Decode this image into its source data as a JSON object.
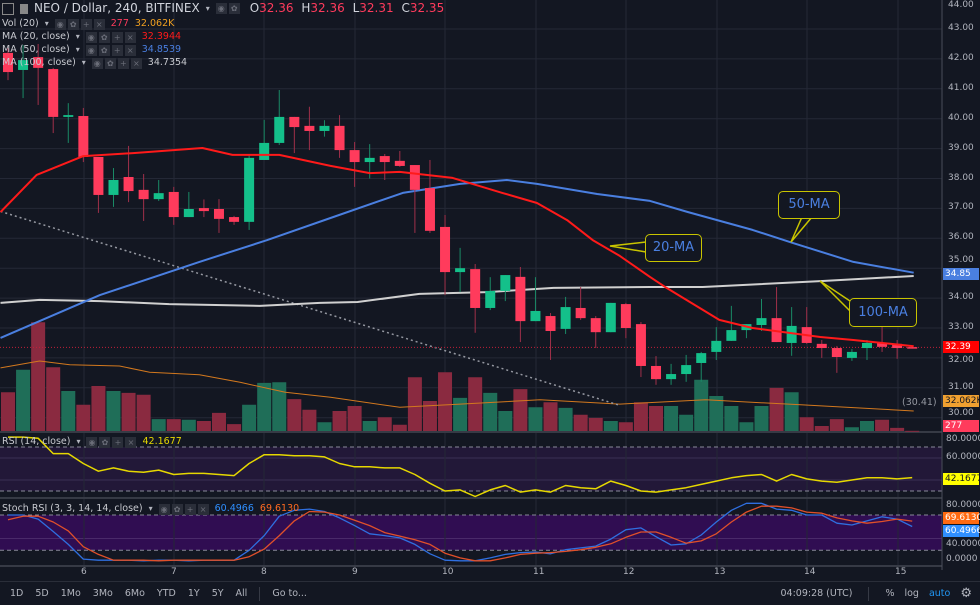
{
  "header": {
    "symbol_title": "NEO / Dollar, 240, BITFINEX",
    "ohlc": {
      "o_label": "O",
      "o": "32.36",
      "h_label": "H",
      "h": "32.36",
      "l_label": "L",
      "l": "32.31",
      "c_label": "C",
      "c": "32.35"
    }
  },
  "indicators": {
    "vol": {
      "label": "Vol (20)",
      "value": "277",
      "ma_value": "32.062K"
    },
    "ma20": {
      "label": "MA (20, close)",
      "value": "32.3944"
    },
    "ma50": {
      "label": "MA (50, close)",
      "value": "34.8539"
    },
    "ma100": {
      "label": "MA (100, close)",
      "value": "34.7354"
    },
    "rsi": {
      "label": "RSI (14, close)",
      "value": "42.1677"
    },
    "stoch": {
      "label": "Stoch RSI (3, 3, 14, 14, close)",
      "k_value": "60.4966",
      "d_value": "69.6130"
    }
  },
  "price_axis": [
    "44.00",
    "43.00",
    "42.00",
    "41.00",
    "40.00",
    "39.00",
    "38.00",
    "37.00",
    "36.00",
    "35.00",
    "34.00",
    "33.00",
    "32.00",
    "31.00",
    "30.00"
  ],
  "rsi_axis": [
    "80.0000",
    "60.0000"
  ],
  "stoch_axis": [
    "80.0000",
    "40.0000",
    "0.0000"
  ],
  "axis_tags": {
    "ma50": "34.85",
    "price": "32.39",
    "vol_ma": "32.062K",
    "vol": "277",
    "rsi": "42.1677",
    "stoch_d": "69.6130",
    "stoch_k": "60.4966",
    "trend_label": "(30.41)"
  },
  "day_labels": [
    "6",
    "7",
    "8",
    "9",
    "10",
    "11",
    "12",
    "13",
    "14",
    "15"
  ],
  "callouts": {
    "ma20": "20-MA",
    "ma50": "50-MA",
    "ma100": "100-MA"
  },
  "colors": {
    "up": "#14c08a",
    "down": "#ff3b5c",
    "vol_up": "#1f6e58",
    "vol_down": "#8a2a40",
    "ma20": "#ff1a1a",
    "ma50": "#4a7fe0",
    "ma100": "#d0d0d0",
    "vol_ma": "#d2781e",
    "rsi": "#e6d800",
    "stoch_k": "#2f6fe0",
    "stoch_d": "#e0502a",
    "callout": "#c8c400"
  },
  "toolbar": {
    "ranges": [
      "1D",
      "5D",
      "1Mo",
      "3Mo",
      "6Mo",
      "YTD",
      "1Y",
      "5Y",
      "All"
    ],
    "goto": "Go to...",
    "time": "04:09:28 (UTC)",
    "percent": "%",
    "log": "log",
    "auto": "auto"
  },
  "chart_data": {
    "type": "candlestick",
    "interval": "240",
    "x_ticks": [
      "6",
      "7",
      "8",
      "9",
      "10",
      "11",
      "12",
      "13",
      "14",
      "15"
    ],
    "ylim": [
      30,
      44
    ],
    "grid": true,
    "candles_ohlc": [
      [
        42.2,
        42.36,
        41.29,
        41.56
      ],
      [
        41.63,
        42.46,
        40.69,
        41.96
      ],
      [
        42.06,
        42.5,
        40.46,
        41.7
      ],
      [
        41.66,
        41.7,
        39.52,
        40.06
      ],
      [
        40.06,
        40.52,
        39.19,
        40.12
      ],
      [
        40.09,
        40.36,
        38.55,
        38.72
      ],
      [
        38.72,
        38.72,
        36.85,
        37.45
      ],
      [
        37.45,
        38.35,
        37.05,
        37.95
      ],
      [
        38.05,
        39.09,
        37.21,
        37.58
      ],
      [
        37.62,
        38.15,
        36.58,
        37.31
      ],
      [
        37.31,
        37.95,
        37.25,
        37.51
      ],
      [
        37.55,
        37.72,
        36.45,
        36.71
      ],
      [
        36.71,
        37.55,
        36.71,
        36.98
      ],
      [
        37.01,
        37.3,
        36.71,
        36.91
      ],
      [
        36.98,
        37.31,
        36.18,
        36.65
      ],
      [
        36.71,
        36.75,
        36.45,
        36.55
      ],
      [
        36.55,
        38.82,
        36.28,
        38.69
      ],
      [
        38.62,
        39.96,
        38.62,
        39.19
      ],
      [
        39.19,
        40.96,
        39.12,
        40.06
      ],
      [
        40.06,
        40.06,
        38.85,
        39.72
      ],
      [
        39.76,
        40.4,
        38.95,
        39.59
      ],
      [
        39.59,
        39.95,
        39.4,
        39.76
      ],
      [
        39.76,
        40.12,
        38.69,
        38.95
      ],
      [
        38.95,
        39.22,
        37.72,
        38.55
      ],
      [
        38.55,
        39.15,
        38.0,
        38.69
      ],
      [
        38.75,
        38.82,
        37.95,
        38.55
      ],
      [
        38.59,
        38.92,
        38.39,
        38.42
      ],
      [
        38.45,
        38.45,
        36.18,
        37.62
      ],
      [
        37.68,
        38.62,
        36.18,
        36.25
      ],
      [
        36.38,
        36.78,
        34.1,
        34.87
      ],
      [
        34.87,
        35.68,
        34.2,
        35.0
      ],
      [
        34.97,
        35.14,
        32.84,
        33.67
      ],
      [
        33.67,
        34.7,
        33.6,
        34.24
      ],
      [
        34.24,
        34.77,
        33.9,
        34.77
      ],
      [
        34.71,
        35.04,
        32.53,
        33.23
      ],
      [
        33.23,
        34.7,
        33.23,
        33.57
      ],
      [
        33.4,
        33.5,
        31.93,
        32.9
      ],
      [
        32.97,
        34.04,
        32.8,
        33.7
      ],
      [
        33.67,
        34.37,
        33.27,
        33.33
      ],
      [
        33.33,
        33.4,
        32.33,
        32.86
      ],
      [
        32.86,
        33.84,
        32.86,
        33.84
      ],
      [
        33.8,
        33.84,
        32.66,
        33.0
      ],
      [
        33.13,
        33.2,
        31.36,
        31.73
      ],
      [
        31.73,
        32.06,
        31.1,
        31.29
      ],
      [
        31.29,
        31.8,
        31.1,
        31.46
      ],
      [
        31.46,
        32.1,
        31.2,
        31.76
      ],
      [
        31.83,
        32.2,
        31.2,
        32.16
      ],
      [
        32.2,
        33.03,
        31.93,
        32.57
      ],
      [
        32.57,
        33.74,
        32.57,
        32.93
      ],
      [
        32.93,
        33.13,
        32.66,
        33.13
      ],
      [
        33.1,
        33.97,
        32.9,
        33.33
      ],
      [
        33.33,
        34.37,
        32.53,
        32.53
      ],
      [
        32.5,
        33.7,
        32.07,
        33.07
      ],
      [
        33.03,
        33.7,
        32.47,
        32.5
      ],
      [
        32.47,
        32.6,
        32.0,
        32.33
      ],
      [
        32.33,
        32.4,
        31.5,
        32.03
      ],
      [
        32.0,
        32.3,
        31.9,
        32.2
      ],
      [
        32.33,
        32.6,
        31.93,
        32.5
      ],
      [
        32.5,
        33.17,
        32.2,
        32.37
      ],
      [
        32.47,
        32.6,
        31.97,
        32.33
      ],
      [
        32.36,
        32.36,
        32.31,
        32.35
      ]
    ],
    "volume_k": [
      62,
      98,
      174,
      102,
      64,
      42,
      72,
      64,
      61,
      58,
      19,
      19,
      18,
      16,
      29,
      11,
      42,
      77,
      78,
      51,
      34,
      14,
      32,
      40,
      16,
      22,
      10,
      86,
      48,
      94,
      53,
      86,
      61,
      32,
      67,
      38,
      46,
      37,
      26,
      21,
      16,
      14,
      46,
      40,
      40,
      26,
      82,
      56,
      40,
      14,
      40,
      69,
      62,
      22,
      8,
      19,
      6,
      16,
      18,
      5,
      0.277
    ],
    "ma20": [
      [
        -0.5,
        36.88
      ],
      [
        1.9,
        38.12
      ],
      [
        5,
        38.75
      ],
      [
        8.3,
        38.85
      ],
      [
        12.9,
        39.02
      ],
      [
        14.9,
        38.79
      ],
      [
        18,
        38.79
      ],
      [
        21.4,
        38.42
      ],
      [
        24,
        38.18
      ],
      [
        26,
        38.22
      ],
      [
        29.5,
        38.02
      ],
      [
        32.8,
        37.52
      ],
      [
        35.1,
        37.18
      ],
      [
        37.1,
        36.61
      ],
      [
        38.8,
        35.94
      ],
      [
        40.6,
        35.41
      ],
      [
        42.6,
        34.71
      ],
      [
        43.7,
        34.34
      ],
      [
        47.2,
        33.27
      ],
      [
        49.4,
        33.0
      ],
      [
        53.9,
        32.7
      ],
      [
        56.1,
        32.6
      ],
      [
        60.1,
        32.39
      ]
    ],
    "ma50": [
      [
        -0.5,
        32.67
      ],
      [
        6.1,
        34.1
      ],
      [
        12.7,
        35.21
      ],
      [
        17.2,
        35.94
      ],
      [
        21.4,
        36.68
      ],
      [
        26.2,
        37.52
      ],
      [
        30,
        37.82
      ],
      [
        33.1,
        37.95
      ],
      [
        35.1,
        37.82
      ],
      [
        39.1,
        37.48
      ],
      [
        42.6,
        37.25
      ],
      [
        45.1,
        36.88
      ],
      [
        49.4,
        36.28
      ],
      [
        52.1,
        35.84
      ],
      [
        56.1,
        35.21
      ],
      [
        60.1,
        34.85
      ]
    ],
    "ma100": [
      [
        -0.5,
        33.84
      ],
      [
        2.1,
        33.94
      ],
      [
        6.1,
        33.9
      ],
      [
        10.7,
        33.8
      ],
      [
        16.7,
        33.74
      ],
      [
        20.7,
        33.84
      ],
      [
        23.2,
        33.87
      ],
      [
        27.3,
        34.14
      ],
      [
        31.8,
        34.2
      ],
      [
        36.2,
        34.34
      ],
      [
        42.6,
        34.37
      ],
      [
        46.1,
        34.37
      ],
      [
        53.9,
        34.57
      ],
      [
        60.1,
        34.74
      ]
    ],
    "volume_ma_k": [
      [
        -0.5,
        101
      ],
      [
        2.1,
        112
      ],
      [
        4.1,
        106
      ],
      [
        7.4,
        104
      ],
      [
        9.4,
        94
      ],
      [
        12.7,
        90
      ],
      [
        15.4,
        78
      ],
      [
        18.4,
        62
      ],
      [
        21.4,
        54
      ],
      [
        26,
        38
      ],
      [
        30,
        43
      ],
      [
        35.3,
        50
      ],
      [
        40.6,
        43
      ],
      [
        46.3,
        50
      ],
      [
        52.6,
        42
      ],
      [
        57.9,
        35
      ],
      [
        60.1,
        32.06
      ]
    ],
    "trendline": [
      [
        -0.5,
        36.9
      ],
      [
        40.6,
        30.41
      ]
    ],
    "last_price": 32.35,
    "rsi": {
      "ylim": [
        0,
        100
      ],
      "bands": [
        30,
        70
      ],
      "values": [
        79,
        79,
        78,
        64,
        64,
        55,
        48,
        51,
        48,
        47,
        49,
        45,
        46,
        46,
        45,
        44,
        55,
        63,
        63,
        62,
        62,
        61,
        55,
        52,
        52,
        51,
        51,
        45,
        37,
        30,
        31,
        25,
        31,
        35,
        29,
        31,
        29,
        35,
        33,
        32,
        39,
        35,
        30,
        29,
        31,
        33,
        36,
        39,
        42,
        44,
        45,
        39,
        45,
        41,
        39,
        38,
        40,
        42,
        42,
        41,
        42.1677
      ]
    },
    "stoch_rsi": {
      "ylim": [
        0,
        100
      ],
      "bands": [
        20,
        80
      ],
      "k": [
        80,
        80,
        73,
        52,
        30,
        5,
        3,
        3,
        3,
        2,
        3,
        3,
        2,
        3,
        3,
        3,
        20,
        45,
        78,
        88,
        90,
        86,
        75,
        62,
        48,
        45,
        41,
        30,
        14,
        3,
        2,
        2,
        7,
        13,
        16,
        17,
        14,
        21,
        24,
        27,
        39,
        55,
        58,
        43,
        29,
        31,
        46,
        68,
        88,
        100,
        100,
        90,
        88,
        80,
        80,
        66,
        63,
        70,
        77,
        73,
        60.4966
      ],
      "d": [
        72,
        78,
        78,
        68,
        53,
        26,
        13,
        3,
        3,
        3,
        2,
        3,
        3,
        3,
        3,
        3,
        9,
        22,
        45,
        70,
        86,
        85,
        80,
        71,
        62,
        50,
        44,
        38,
        30,
        15,
        7,
        2,
        2,
        7,
        13,
        15,
        16,
        18,
        21,
        25,
        31,
        42,
        51,
        51,
        42,
        32,
        36,
        48,
        68,
        85,
        95,
        95,
        92,
        85,
        83,
        75,
        70,
        66,
        69,
        73,
        69.613
      ]
    }
  }
}
